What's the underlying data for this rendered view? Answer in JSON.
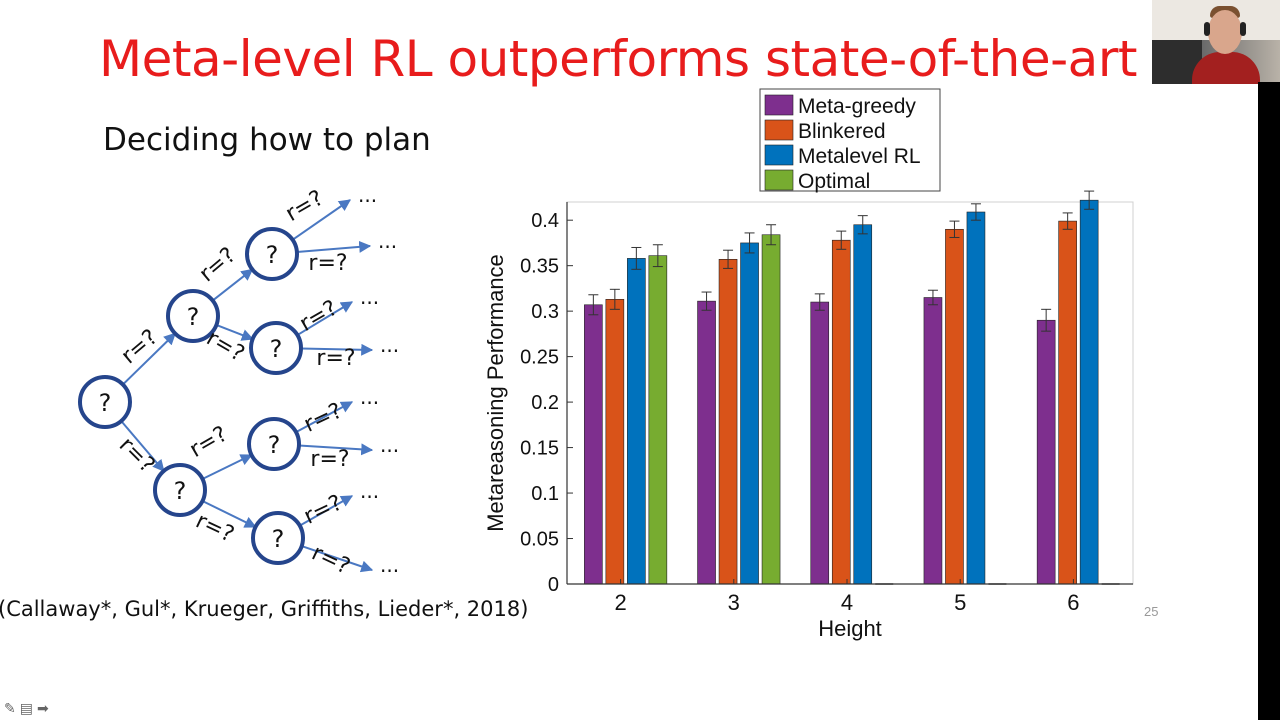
{
  "slide": {
    "title": "Meta-level RL outperforms state-of-the-art",
    "subtitle": "Deciding how to plan",
    "citation": "(Callaway*, Gul*, Krueger, Griffiths, Lieder*, 2018)",
    "slide_number": "25"
  },
  "tree": {
    "node_label": "?",
    "edge_label": "r=?",
    "ellipsis": "..."
  },
  "colors": {
    "title": "#e81c1c",
    "node_stroke": "#25458c",
    "edge": "#4a78c2",
    "meta_greedy": "#7e2f8e",
    "blinkered": "#d95319",
    "metalevel_rl": "#0072bd",
    "optimal": "#77ac30"
  },
  "toolbar": {
    "pen_icon": "pen-icon",
    "notes_icon": "notes-icon",
    "next_icon": "arrow-right-icon"
  },
  "chart_data": {
    "type": "bar",
    "xlabel": "Height",
    "ylabel": "Metareasoning Performance",
    "categories": [
      "2",
      "3",
      "4",
      "5",
      "6"
    ],
    "ylim": [
      0,
      0.42
    ],
    "yticks": [
      0,
      0.05,
      0.1,
      0.15,
      0.2,
      0.25,
      0.3,
      0.35,
      0.4
    ],
    "ytick_labels": [
      "0",
      "0.05",
      "0.1",
      "0.15",
      "0.2",
      "0.25",
      "0.3",
      "0.35",
      "0.4"
    ],
    "legend_position": "top",
    "grid": false,
    "series": [
      {
        "name": "Meta-greedy",
        "color": "#7e2f8e",
        "values": [
          0.307,
          0.311,
          0.31,
          0.315,
          0.29
        ],
        "errors": [
          0.011,
          0.01,
          0.009,
          0.008,
          0.012
        ]
      },
      {
        "name": "Blinkered",
        "color": "#d95319",
        "values": [
          0.313,
          0.357,
          0.378,
          0.39,
          0.399
        ],
        "errors": [
          0.011,
          0.01,
          0.01,
          0.009,
          0.009
        ]
      },
      {
        "name": "Metalevel RL",
        "color": "#0072bd",
        "values": [
          0.358,
          0.375,
          0.395,
          0.409,
          0.422
        ],
        "errors": [
          0.012,
          0.011,
          0.01,
          0.009,
          0.01
        ]
      },
      {
        "name": "Optimal",
        "color": "#77ac30",
        "values": [
          0.361,
          0.384,
          null,
          null,
          null
        ],
        "errors": [
          0.012,
          0.011,
          null,
          null,
          null
        ]
      }
    ]
  }
}
